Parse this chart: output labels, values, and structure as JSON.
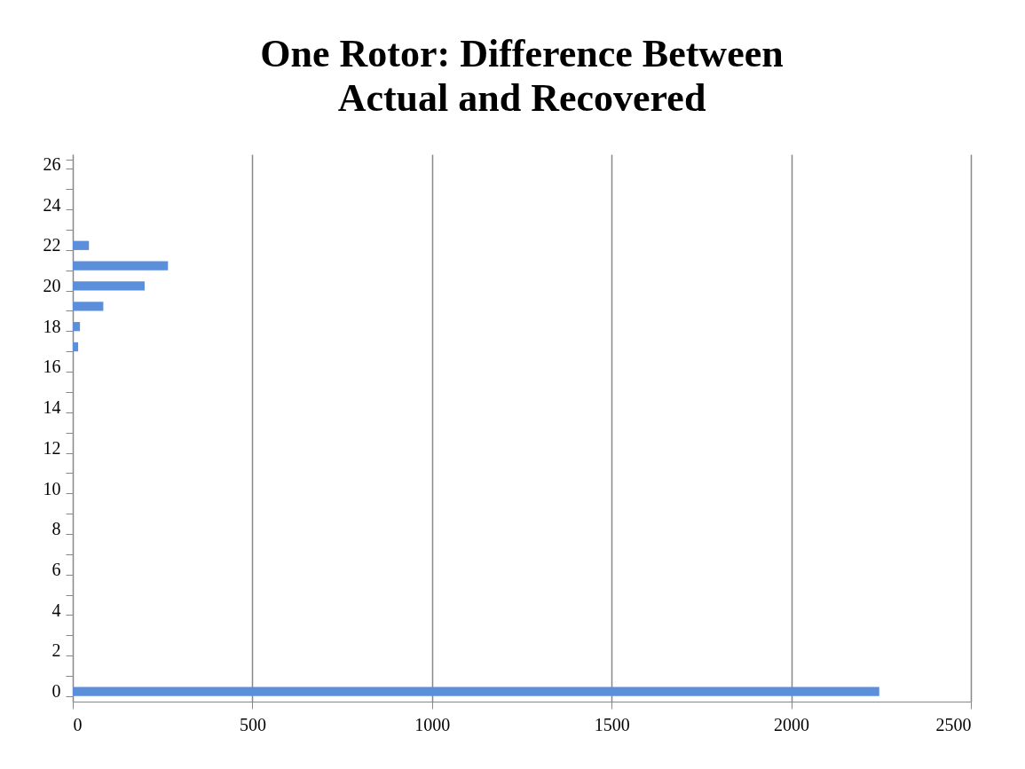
{
  "chart_data": {
    "type": "bar",
    "orientation": "horizontal",
    "title": "One Rotor: Difference Between Actual and Recovered",
    "categories": [
      "26",
      null,
      "24",
      null,
      "22",
      null,
      "20",
      null,
      "18",
      null,
      "16",
      null,
      "14",
      null,
      "12",
      null,
      "10",
      null,
      "8",
      null,
      "6",
      null,
      "4",
      null,
      "2",
      null,
      "0"
    ],
    "values": [
      0,
      0,
      0,
      0,
      45,
      265,
      200,
      85,
      20,
      15,
      0,
      0,
      0,
      0,
      0,
      0,
      0,
      0,
      0,
      0,
      0,
      0,
      0,
      0,
      0,
      0,
      2245
    ],
    "color": "#5b8fdc",
    "xlim": [
      0,
      2500
    ],
    "xticks": [
      0,
      500,
      1000,
      1500,
      2000,
      2500
    ],
    "grid": "x"
  }
}
